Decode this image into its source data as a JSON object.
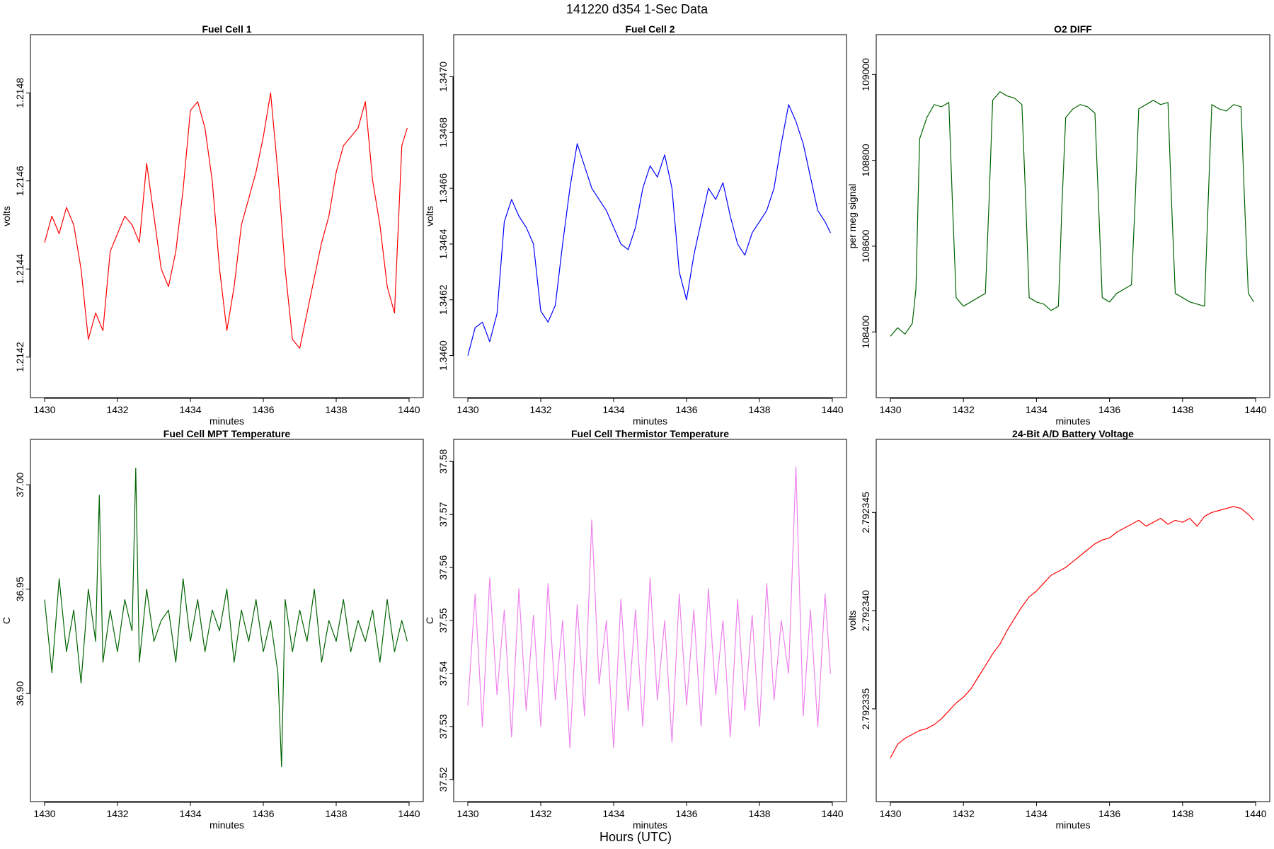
{
  "figure": {
    "title": "141220   d354   1-Sec Data",
    "xlabel": "Hours (UTC)"
  },
  "chart_data": [
    {
      "type": "line",
      "title": "Fuel Cell 1",
      "xlabel": "minutes",
      "ylabel": "volts",
      "xlim": [
        1430,
        1440
      ],
      "ylim": [
        1.21414,
        1.2149
      ],
      "xticks": [
        "1430",
        "1432",
        "1434",
        "1436",
        "1438",
        "1440"
      ],
      "yticks": [
        "1.2142",
        "1.2144",
        "1.2146",
        "1.2148"
      ],
      "color": "#ff0000",
      "series": [
        {
          "x": [
            1430.0,
            1430.2,
            1430.4,
            1430.6,
            1430.8,
            1431.0,
            1431.2,
            1431.4,
            1431.6,
            1431.8,
            1432.0,
            1432.2,
            1432.4,
            1432.6,
            1432.8,
            1433.0,
            1433.2,
            1433.4,
            1433.6,
            1433.8,
            1434.0,
            1434.2,
            1434.4,
            1434.6,
            1434.8,
            1435.0,
            1435.2,
            1435.4,
            1435.6,
            1435.8,
            1436.0,
            1436.2,
            1436.4,
            1436.6,
            1436.8,
            1437.0,
            1437.2,
            1437.4,
            1437.6,
            1437.8,
            1438.0,
            1438.2,
            1438.4,
            1438.6,
            1438.8,
            1439.0,
            1439.2,
            1439.4,
            1439.6,
            1439.8,
            1439.95
          ],
          "y": [
            1.21446,
            1.21452,
            1.21448,
            1.21454,
            1.2145,
            1.2144,
            1.21424,
            1.2143,
            1.21426,
            1.21444,
            1.21448,
            1.21452,
            1.2145,
            1.21446,
            1.21464,
            1.21452,
            1.2144,
            1.21436,
            1.21444,
            1.21458,
            1.21476,
            1.21478,
            1.21472,
            1.2146,
            1.2144,
            1.21426,
            1.21436,
            1.2145,
            1.21456,
            1.21462,
            1.2147,
            1.2148,
            1.21462,
            1.2144,
            1.21424,
            1.21422,
            1.2143,
            1.21438,
            1.21446,
            1.21452,
            1.21462,
            1.21468,
            1.2147,
            1.21472,
            1.21478,
            1.2146,
            1.2145,
            1.21436,
            1.2143,
            1.21468,
            1.21472
          ]
        }
      ]
    },
    {
      "type": "line",
      "title": "Fuel Cell 2",
      "xlabel": "minutes",
      "ylabel": "volts",
      "xlim": [
        1430,
        1440
      ],
      "ylim": [
        1.3459,
        1.3471
      ],
      "xticks": [
        "1430",
        "1432",
        "1434",
        "1436",
        "1438",
        "1440"
      ],
      "yticks": [
        "1.3460",
        "1.3462",
        "1.3464",
        "1.3466",
        "1.3468",
        "1.3470"
      ],
      "color": "#0000ff",
      "series": [
        {
          "x": [
            1430.0,
            1430.2,
            1430.4,
            1430.6,
            1430.8,
            1431.0,
            1431.2,
            1431.4,
            1431.6,
            1431.8,
            1432.0,
            1432.2,
            1432.4,
            1432.6,
            1432.8,
            1433.0,
            1433.2,
            1433.4,
            1433.6,
            1433.8,
            1434.0,
            1434.2,
            1434.4,
            1434.6,
            1434.8,
            1435.0,
            1435.2,
            1435.4,
            1435.6,
            1435.8,
            1436.0,
            1436.2,
            1436.4,
            1436.6,
            1436.8,
            1437.0,
            1437.2,
            1437.4,
            1437.6,
            1437.8,
            1438.0,
            1438.2,
            1438.4,
            1438.6,
            1438.8,
            1439.0,
            1439.2,
            1439.4,
            1439.6,
            1439.8,
            1439.95
          ],
          "y": [
            1.346,
            1.3461,
            1.34612,
            1.34605,
            1.34615,
            1.34648,
            1.34656,
            1.3465,
            1.34646,
            1.3464,
            1.34616,
            1.34612,
            1.34618,
            1.3464,
            1.3466,
            1.34676,
            1.34668,
            1.3466,
            1.34656,
            1.34652,
            1.34646,
            1.3464,
            1.34638,
            1.34646,
            1.3466,
            1.34668,
            1.34664,
            1.34672,
            1.3466,
            1.3463,
            1.3462,
            1.34636,
            1.34648,
            1.3466,
            1.34656,
            1.34662,
            1.3465,
            1.3464,
            1.34636,
            1.34644,
            1.34648,
            1.34652,
            1.3466,
            1.34676,
            1.3469,
            1.34684,
            1.34676,
            1.34664,
            1.34652,
            1.34648,
            1.34644
          ]
        }
      ]
    },
    {
      "type": "line",
      "title": "O2 DIFF",
      "xlabel": "minutes",
      "ylabel": "per meg signal",
      "xlim": [
        1430,
        1440
      ],
      "ylim": [
        108280,
        109060
      ],
      "xticks": [
        "1430",
        "1432",
        "1434",
        "1436",
        "1438",
        "1440"
      ],
      "yticks": [
        "108400",
        "108600",
        "108800",
        "109000"
      ],
      "color": "#006400",
      "series": [
        {
          "x": [
            1430.0,
            1430.2,
            1430.4,
            1430.6,
            1430.7,
            1430.8,
            1431.0,
            1431.2,
            1431.4,
            1431.6,
            1431.7,
            1431.8,
            1432.0,
            1432.2,
            1432.4,
            1432.6,
            1432.7,
            1432.8,
            1433.0,
            1433.2,
            1433.4,
            1433.6,
            1433.7,
            1433.8,
            1434.0,
            1434.2,
            1434.4,
            1434.6,
            1434.7,
            1434.8,
            1435.0,
            1435.2,
            1435.4,
            1435.6,
            1435.7,
            1435.8,
            1436.0,
            1436.2,
            1436.4,
            1436.6,
            1436.7,
            1436.8,
            1437.0,
            1437.2,
            1437.4,
            1437.6,
            1437.7,
            1437.8,
            1438.0,
            1438.2,
            1438.4,
            1438.6,
            1438.7,
            1438.8,
            1439.0,
            1439.2,
            1439.4,
            1439.6,
            1439.7,
            1439.8,
            1439.95
          ],
          "y": [
            108390,
            108410,
            108395,
            108420,
            108500,
            108850,
            108900,
            108930,
            108925,
            108935,
            108700,
            108480,
            108460,
            108470,
            108480,
            108490,
            108700,
            108940,
            108960,
            108950,
            108945,
            108930,
            108720,
            108480,
            108470,
            108465,
            108450,
            108460,
            108700,
            108900,
            108920,
            108930,
            108925,
            108910,
            108700,
            108480,
            108470,
            108490,
            108500,
            108510,
            108700,
            108920,
            108930,
            108940,
            108930,
            108935,
            108700,
            108490,
            108480,
            108470,
            108465,
            108460,
            108700,
            108930,
            108920,
            108915,
            108930,
            108925,
            108700,
            108490,
            108470
          ]
        }
      ]
    },
    {
      "type": "line",
      "title": "Fuel Cell MPT Temperature",
      "xlabel": "minutes",
      "ylabel": "C",
      "xlim": [
        1430,
        1440
      ],
      "ylim": [
        36.855,
        37.015
      ],
      "xticks": [
        "1430",
        "1432",
        "1434",
        "1436",
        "1438",
        "1440"
      ],
      "yticks": [
        "36.90",
        "36.95",
        "37.00"
      ],
      "color": "#006400",
      "series": [
        {
          "x": [
            1430.0,
            1430.2,
            1430.4,
            1430.6,
            1430.8,
            1431.0,
            1431.2,
            1431.4,
            1431.5,
            1431.6,
            1431.8,
            1432.0,
            1432.2,
            1432.4,
            1432.5,
            1432.6,
            1432.8,
            1433.0,
            1433.2,
            1433.4,
            1433.6,
            1433.8,
            1434.0,
            1434.2,
            1434.4,
            1434.6,
            1434.8,
            1435.0,
            1435.2,
            1435.4,
            1435.6,
            1435.8,
            1436.0,
            1436.2,
            1436.4,
            1436.5,
            1436.6,
            1436.8,
            1437.0,
            1437.2,
            1437.4,
            1437.6,
            1437.8,
            1438.0,
            1438.2,
            1438.4,
            1438.6,
            1438.8,
            1439.0,
            1439.2,
            1439.4,
            1439.6,
            1439.8,
            1439.95
          ],
          "y": [
            36.945,
            36.91,
            36.955,
            36.92,
            36.94,
            36.905,
            36.95,
            36.925,
            36.995,
            36.915,
            36.94,
            36.92,
            36.945,
            36.93,
            37.008,
            36.915,
            36.95,
            36.925,
            36.935,
            36.94,
            36.915,
            36.955,
            36.925,
            36.945,
            36.92,
            36.94,
            36.93,
            36.95,
            36.915,
            36.94,
            36.925,
            36.945,
            36.92,
            36.935,
            36.91,
            36.865,
            36.945,
            36.92,
            36.94,
            36.925,
            36.95,
            36.915,
            36.935,
            36.925,
            36.945,
            36.92,
            36.935,
            36.925,
            36.94,
            36.915,
            36.945,
            36.92,
            36.935,
            36.925
          ]
        }
      ]
    },
    {
      "type": "line",
      "title": "Fuel Cell Thermistor Temperature",
      "xlabel": "minutes",
      "ylabel": "C",
      "xlim": [
        1430,
        1440
      ],
      "ylim": [
        37.5185,
        37.5815
      ],
      "xticks": [
        "1430",
        "1432",
        "1434",
        "1436",
        "1438",
        "1440"
      ],
      "yticks": [
        "37.52",
        "37.53",
        "37.54",
        "37.55",
        "37.56",
        "37.57",
        "37.58"
      ],
      "color": "#ee82ee",
      "series": [
        {
          "x": [
            1430.0,
            1430.2,
            1430.4,
            1430.6,
            1430.8,
            1431.0,
            1431.2,
            1431.4,
            1431.6,
            1431.8,
            1432.0,
            1432.2,
            1432.4,
            1432.6,
            1432.8,
            1433.0,
            1433.2,
            1433.4,
            1433.6,
            1433.8,
            1434.0,
            1434.2,
            1434.4,
            1434.6,
            1434.8,
            1435.0,
            1435.2,
            1435.4,
            1435.6,
            1435.8,
            1436.0,
            1436.2,
            1436.4,
            1436.6,
            1436.8,
            1437.0,
            1437.2,
            1437.4,
            1437.6,
            1437.8,
            1438.0,
            1438.2,
            1438.4,
            1438.6,
            1438.8,
            1439.0,
            1439.2,
            1439.4,
            1439.6,
            1439.8,
            1439.95
          ],
          "y": [
            37.534,
            37.555,
            37.53,
            37.558,
            37.536,
            37.552,
            37.528,
            37.556,
            37.533,
            37.551,
            37.53,
            37.557,
            37.535,
            37.55,
            37.526,
            37.553,
            37.532,
            37.569,
            37.538,
            37.55,
            37.526,
            37.554,
            37.533,
            37.552,
            37.53,
            37.558,
            37.535,
            37.55,
            37.527,
            37.555,
            37.534,
            37.552,
            37.53,
            37.556,
            37.536,
            37.55,
            37.528,
            37.554,
            37.533,
            37.551,
            37.53,
            37.557,
            37.535,
            37.55,
            37.54,
            37.579,
            37.532,
            37.552,
            37.53,
            37.555,
            37.54
          ]
        }
      ]
    },
    {
      "type": "line",
      "title": "24-Bit A/D Battery Voltage",
      "xlabel": "minutes",
      "ylabel": "volts",
      "xlim": [
        1430,
        1440
      ],
      "ylim": [
        2.792331,
        2.792348
      ],
      "xticks": [
        "1430",
        "1432",
        "1434",
        "1436",
        "1438",
        "1440"
      ],
      "yticks": [
        "2.792335",
        "2.792340",
        "2.792345"
      ],
      "color": "#ff0000",
      "series": [
        {
          "x": [
            1430.0,
            1430.2,
            1430.4,
            1430.6,
            1430.8,
            1431.0,
            1431.2,
            1431.4,
            1431.6,
            1431.8,
            1432.0,
            1432.2,
            1432.4,
            1432.6,
            1432.8,
            1433.0,
            1433.2,
            1433.4,
            1433.6,
            1433.8,
            1434.0,
            1434.2,
            1434.4,
            1434.6,
            1434.8,
            1435.0,
            1435.2,
            1435.4,
            1435.6,
            1435.8,
            1436.0,
            1436.2,
            1436.4,
            1436.6,
            1436.8,
            1437.0,
            1437.2,
            1437.4,
            1437.6,
            1437.8,
            1438.0,
            1438.2,
            1438.4,
            1438.6,
            1438.8,
            1439.0,
            1439.2,
            1439.4,
            1439.6,
            1439.8,
            1439.95
          ],
          "y": [
            2.7923325,
            2.7923332,
            2.7923335,
            2.7923337,
            2.7923339,
            2.792334,
            2.7923342,
            2.7923345,
            2.7923349,
            2.7923353,
            2.7923356,
            2.792336,
            2.7923366,
            2.7923372,
            2.7923378,
            2.7923383,
            2.792339,
            2.7923396,
            2.7923402,
            2.7923407,
            2.792341,
            2.7923414,
            2.7923418,
            2.792342,
            2.7923422,
            2.7923425,
            2.7923428,
            2.7923431,
            2.7923434,
            2.7923436,
            2.7923437,
            2.792344,
            2.7923442,
            2.7923444,
            2.7923446,
            2.7923443,
            2.7923445,
            2.7923447,
            2.7923444,
            2.7923446,
            2.7923445,
            2.7923447,
            2.7923443,
            2.7923448,
            2.792345,
            2.7923451,
            2.7923452,
            2.7923453,
            2.7923452,
            2.7923449,
            2.7923446
          ]
        }
      ]
    }
  ]
}
